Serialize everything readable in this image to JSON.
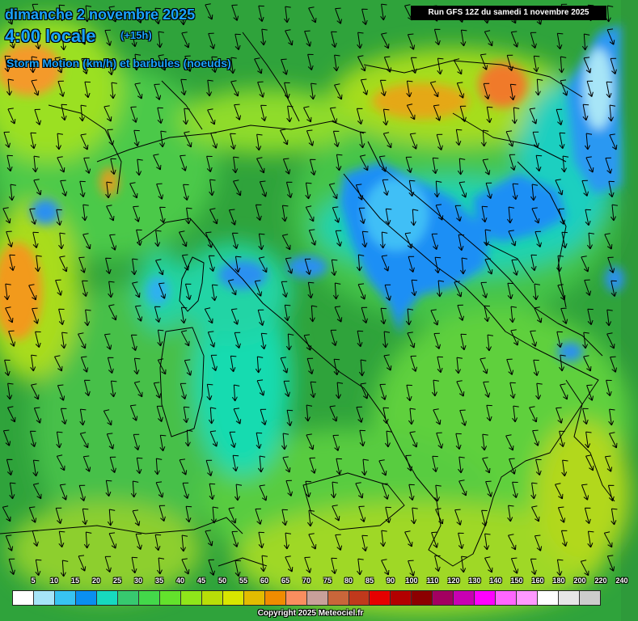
{
  "header": {
    "date": "dimanche 2 novembre 2025",
    "time": "4:00 locale",
    "lead": "(+15h)",
    "parameter": "Storm Motion (km/h) et barbules (noeuds)"
  },
  "run_label": "Run GFS 12Z du samedi 1 novembre 2025",
  "scale": {
    "ticks": [
      "5",
      "10",
      "15",
      "20",
      "25",
      "30",
      "35",
      "40",
      "45",
      "50",
      "55",
      "60",
      "65",
      "70",
      "75",
      "80",
      "85",
      "90",
      "100",
      "110",
      "120",
      "130",
      "140",
      "150",
      "160",
      "180",
      "200",
      "220",
      "240"
    ],
    "colors": [
      "#ffffff",
      "#a6e4f7",
      "#38c3f1",
      "#0a8ff0",
      "#17d9bf",
      "#37c96f",
      "#43d84a",
      "#63e22c",
      "#8fe61a",
      "#b8de08",
      "#d8e600",
      "#e2bc00",
      "#f08c00",
      "#f98e5f",
      "#c8a09a",
      "#c9663a",
      "#c0391c",
      "#e60000",
      "#b30000",
      "#8c0000",
      "#a30060",
      "#c800b3",
      "#ff00ff",
      "#ff66ff",
      "#ff99ff",
      "#ffffff",
      "#e6e6e6",
      "#cccccc"
    ]
  },
  "copyright": "Copyright 2025 Meteociel.fr",
  "map": {
    "background_color": "#2fa33b",
    "wind_direction": "north-northwest to south-southeast"
  }
}
